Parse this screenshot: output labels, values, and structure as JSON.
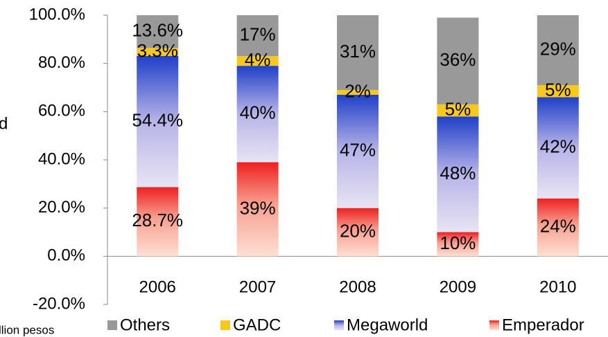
{
  "chart_data": {
    "type": "stacked_bar",
    "annotations": [
      "d",
      "llion pesos"
    ],
    "categories": [
      "2006",
      "2007",
      "2008",
      "2009",
      "2010"
    ],
    "series": [
      {
        "name": "Emperador",
        "color": "#ee2020",
        "values": [
          28.7,
          39,
          20,
          10,
          24
        ],
        "value_labels": [
          "28.7%",
          "39%",
          "20%",
          "10%",
          "24%"
        ]
      },
      {
        "name": "Megaworld",
        "color": "#2040c8",
        "values": [
          54.4,
          40,
          47,
          48,
          42
        ],
        "value_labels": [
          "54.4%",
          "40%",
          "47%",
          "48%",
          "42%"
        ]
      },
      {
        "name": "GADC",
        "color": "#f8c81c",
        "values": [
          3.3,
          4,
          2,
          5,
          5
        ],
        "value_labels": [
          "3.3%",
          "4%",
          "2%",
          "5%",
          "5%"
        ]
      },
      {
        "name": "Others",
        "color": "#999999",
        "values": [
          13.6,
          17,
          31,
          36,
          29
        ],
        "value_labels": [
          "13.6%",
          "17%",
          "31%",
          "36%",
          "29%"
        ]
      }
    ],
    "ylim": [
      -20,
      100
    ],
    "yticks": [
      {
        "value": -20,
        "label": "-20.0%"
      },
      {
        "value": 0,
        "label": "0.0%"
      },
      {
        "value": 20,
        "label": "20.0%"
      },
      {
        "value": 40,
        "label": "40.0%"
      },
      {
        "value": 60,
        "label": "60.0%"
      },
      {
        "value": 80,
        "label": "80.0%"
      },
      {
        "value": 100,
        "label": "100.0%"
      }
    ],
    "grid": false,
    "legend": "bottom"
  }
}
